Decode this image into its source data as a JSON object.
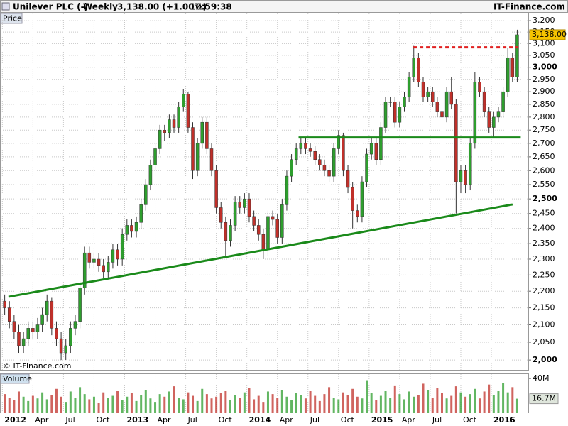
{
  "header": {
    "instrument": "Unilever PLC (-)",
    "period": "Weekly",
    "quote": "3,138.00 (+1.00%)",
    "time": "10:59:38",
    "source": "IT-Finance.com"
  },
  "chart_data": [
    {
      "type": "candlestick",
      "panel_label": "Price",
      "watermark": "© IT-Finance.com",
      "log": true,
      "grid": true,
      "colors": {
        "up": "#2e9e2e",
        "down": "#c0302a"
      },
      "x": [
        1,
        3,
        5,
        7,
        9,
        11,
        13,
        15,
        17,
        19,
        21,
        23,
        25,
        27,
        29,
        31,
        33,
        35,
        37,
        39,
        41,
        43,
        45,
        47,
        49,
        51,
        53,
        55,
        57,
        59,
        61,
        63,
        65,
        67,
        69,
        71,
        73,
        75,
        77,
        79,
        81,
        83,
        85,
        87,
        89,
        91,
        93,
        95,
        97,
        99,
        101,
        103,
        105,
        107,
        109,
        111,
        113,
        115,
        117,
        119,
        121,
        123,
        125,
        127,
        129,
        131,
        133,
        135,
        137,
        139,
        141,
        143,
        145,
        147,
        149,
        151,
        153,
        155,
        157,
        159,
        161,
        163,
        165,
        167,
        169,
        171,
        173,
        175,
        177,
        179,
        181,
        183,
        185,
        187,
        189,
        191,
        193,
        195,
        197,
        199,
        201,
        203,
        205,
        207,
        209,
        211,
        213,
        215,
        217,
        219
      ],
      "open": [
        2170,
        2150,
        2110,
        2080,
        2040,
        2060,
        2090,
        2080,
        2100,
        2130,
        2170,
        2090,
        2060,
        2020,
        2040,
        2090,
        2110,
        2210,
        2320,
        2290,
        2300,
        2280,
        2260,
        2290,
        2330,
        2300,
        2380,
        2410,
        2390,
        2420,
        2480,
        2550,
        2620,
        2680,
        2750,
        2740,
        2790,
        2760,
        2840,
        2890,
        2760,
        2600,
        2700,
        2780,
        2680,
        2600,
        2470,
        2420,
        2360,
        2410,
        2490,
        2470,
        2500,
        2440,
        2410,
        2380,
        2330,
        2440,
        2430,
        2370,
        2480,
        2580,
        2640,
        2680,
        2700,
        2680,
        2670,
        2640,
        2620,
        2600,
        2580,
        2680,
        2730,
        2600,
        2540,
        2460,
        2440,
        2560,
        2660,
        2700,
        2640,
        2760,
        2860,
        2860,
        2780,
        2840,
        2880,
        2960,
        3040,
        2940,
        2880,
        2900,
        2860,
        2820,
        2800,
        2900,
        2850,
        2560,
        2600,
        2550,
        2700,
        2940,
        2900,
        2820,
        2760,
        2800,
        2820,
        2900,
        3040,
        2960
      ],
      "high": [
        2190,
        2170,
        2130,
        2100,
        2080,
        2110,
        2110,
        2120,
        2150,
        2190,
        2180,
        2110,
        2080,
        2060,
        2110,
        2130,
        2230,
        2340,
        2340,
        2320,
        2320,
        2300,
        2310,
        2350,
        2350,
        2400,
        2430,
        2430,
        2440,
        2500,
        2570,
        2640,
        2700,
        2770,
        2770,
        2810,
        2810,
        2860,
        2910,
        2900,
        2780,
        2720,
        2800,
        2800,
        2700,
        2620,
        2490,
        2440,
        2430,
        2510,
        2510,
        2520,
        2520,
        2460,
        2430,
        2400,
        2460,
        2460,
        2450,
        2500,
        2600,
        2660,
        2700,
        2720,
        2720,
        2700,
        2690,
        2660,
        2640,
        2620,
        2700,
        2750,
        2740,
        2620,
        2560,
        2480,
        2580,
        2680,
        2720,
        2720,
        2780,
        2880,
        2880,
        2880,
        2860,
        2900,
        2980,
        3090,
        3060,
        2960,
        2920,
        2920,
        2880,
        2840,
        2920,
        2960,
        2870,
        2620,
        2620,
        2720,
        2980,
        2960,
        2920,
        2840,
        2820,
        2840,
        2920,
        3080,
        3060,
        3160
      ],
      "low": [
        2130,
        2090,
        2060,
        2020,
        2020,
        2040,
        2060,
        2060,
        2080,
        2110,
        2070,
        2040,
        2000,
        2000,
        2020,
        2070,
        2090,
        2190,
        2270,
        2270,
        2260,
        2240,
        2240,
        2270,
        2280,
        2280,
        2360,
        2370,
        2370,
        2400,
        2460,
        2530,
        2600,
        2660,
        2710,
        2720,
        2740,
        2740,
        2820,
        2740,
        2570,
        2580,
        2680,
        2660,
        2580,
        2450,
        2400,
        2310,
        2340,
        2390,
        2450,
        2450,
        2420,
        2390,
        2360,
        2300,
        2310,
        2410,
        2350,
        2350,
        2460,
        2560,
        2620,
        2660,
        2660,
        2650,
        2620,
        2600,
        2580,
        2560,
        2560,
        2660,
        2580,
        2520,
        2400,
        2420,
        2420,
        2540,
        2640,
        2620,
        2620,
        2740,
        2840,
        2760,
        2760,
        2820,
        2860,
        2940,
        2920,
        2860,
        2860,
        2840,
        2800,
        2780,
        2780,
        2830,
        2450,
        2520,
        2520,
        2530,
        2680,
        2880,
        2800,
        2740,
        2720,
        2780,
        2800,
        2880,
        2940,
        2940
      ],
      "close": [
        2150,
        2110,
        2080,
        2040,
        2060,
        2090,
        2080,
        2100,
        2130,
        2170,
        2090,
        2060,
        2020,
        2040,
        2090,
        2110,
        2210,
        2320,
        2290,
        2300,
        2280,
        2260,
        2290,
        2330,
        2300,
        2380,
        2410,
        2390,
        2420,
        2480,
        2550,
        2620,
        2680,
        2750,
        2740,
        2790,
        2760,
        2840,
        2890,
        2760,
        2600,
        2700,
        2780,
        2680,
        2600,
        2470,
        2420,
        2360,
        2410,
        2490,
        2470,
        2500,
        2440,
        2410,
        2380,
        2330,
        2440,
        2430,
        2370,
        2480,
        2580,
        2640,
        2680,
        2700,
        2680,
        2670,
        2640,
        2620,
        2600,
        2580,
        2680,
        2730,
        2600,
        2540,
        2460,
        2440,
        2560,
        2660,
        2700,
        2640,
        2760,
        2860,
        2860,
        2780,
        2840,
        2880,
        2960,
        3040,
        2940,
        2880,
        2900,
        2860,
        2820,
        2800,
        2900,
        2850,
        2560,
        2600,
        2550,
        2700,
        2940,
        2900,
        2820,
        2760,
        2800,
        2820,
        2900,
        3040,
        2960,
        3138
      ],
      "xlim": [
        -1,
        224
      ],
      "xticks": [
        {
          "value": 0,
          "label": "2012"
        },
        {
          "value": 13,
          "label": "Apr"
        },
        {
          "value": 26,
          "label": "Jul"
        },
        {
          "value": 39,
          "label": "Oct"
        },
        {
          "value": 52,
          "label": "2013"
        },
        {
          "value": 65,
          "label": "Apr"
        },
        {
          "value": 78,
          "label": "Jul"
        },
        {
          "value": 91,
          "label": "Oct"
        },
        {
          "value": 104,
          "label": "2014"
        },
        {
          "value": 117,
          "label": "Apr"
        },
        {
          "value": 130,
          "label": "Jul"
        },
        {
          "value": 143,
          "label": "Oct"
        },
        {
          "value": 156,
          "label": "2015"
        },
        {
          "value": 169,
          "label": "Apr"
        },
        {
          "value": 182,
          "label": "Jul"
        },
        {
          "value": 195,
          "label": "Oct"
        },
        {
          "value": 208,
          "label": "2016"
        }
      ],
      "ylim": [
        1971,
        3235
      ],
      "yticks": [
        {
          "value": 2000,
          "label": "2,000"
        },
        {
          "value": 2050,
          "label": "2,050"
        },
        {
          "value": 2100,
          "label": "2,100"
        },
        {
          "value": 2150,
          "label": "2,150"
        },
        {
          "value": 2200,
          "label": "2,200"
        },
        {
          "value": 2250,
          "label": "2,250"
        },
        {
          "value": 2300,
          "label": "2,300"
        },
        {
          "value": 2350,
          "label": "2,350"
        },
        {
          "value": 2400,
          "label": "2,400"
        },
        {
          "value": 2450,
          "label": "2,450"
        },
        {
          "value": 2500,
          "label": "2,500"
        },
        {
          "value": 2550,
          "label": "2,550"
        },
        {
          "value": 2600,
          "label": "2,600"
        },
        {
          "value": 2650,
          "label": "2,650"
        },
        {
          "value": 2700,
          "label": "2,700"
        },
        {
          "value": 2750,
          "label": "2,750"
        },
        {
          "value": 2800,
          "label": "2,800"
        },
        {
          "value": 2850,
          "label": "2,850"
        },
        {
          "value": 2900,
          "label": "2,900"
        },
        {
          "value": 2950,
          "label": "2,950"
        },
        {
          "value": 3000,
          "label": "3,000"
        },
        {
          "value": 3050,
          "label": "3,050"
        },
        {
          "value": 3100,
          "label": "3,100"
        },
        {
          "value": 3150,
          "label": "3,150"
        },
        {
          "value": 3200,
          "label": "3,200"
        }
      ],
      "last_price": {
        "value": 3138,
        "label": "3,138.00"
      },
      "trendlines": [
        {
          "x": [
            2.6,
            217
          ],
          "y": [
            2183,
            2481
          ],
          "color": "#1a8a1a",
          "dashed": false
        },
        {
          "x": [
            126,
            220.5
          ],
          "y": [
            2722,
            2722
          ],
          "color": "#1a8a1a",
          "dashed": false
        },
        {
          "x": [
            174.8,
            219.5
          ],
          "y": [
            3084,
            3084
          ],
          "color": "#e02020",
          "dashed": true
        }
      ]
    },
    {
      "type": "bar",
      "panel_label": "Volume",
      "values": [
        22,
        18,
        15,
        25,
        19,
        14,
        20,
        17,
        24,
        16,
        21,
        28,
        19,
        13,
        25,
        18,
        30,
        22,
        16,
        19,
        12,
        24,
        18,
        20,
        26,
        15,
        19,
        23,
        14,
        21,
        27,
        17,
        13,
        22,
        19,
        25,
        31,
        18,
        16,
        24,
        20,
        14,
        28,
        22,
        17,
        19,
        23,
        26,
        15,
        21,
        18,
        24,
        29,
        16,
        20,
        13,
        25,
        22,
        18,
        27,
        19,
        15,
        23,
        21,
        17,
        26,
        20,
        14,
        22,
        30,
        18,
        16,
        24,
        21,
        28,
        19,
        17,
        38,
        23,
        15,
        20,
        26,
        18,
        32,
        22,
        16,
        25,
        19,
        21,
        34,
        27,
        18,
        29,
        23,
        17,
        20,
        31,
        24,
        19,
        22,
        28,
        17,
        25,
        33,
        21,
        26,
        35,
        24,
        30,
        16.7
      ],
      "ylim": [
        0,
        45
      ],
      "yticks": [
        {
          "value": 40,
          "label": "40M"
        }
      ],
      "last_value": {
        "value": 16.7,
        "label": "16.7M"
      }
    }
  ]
}
